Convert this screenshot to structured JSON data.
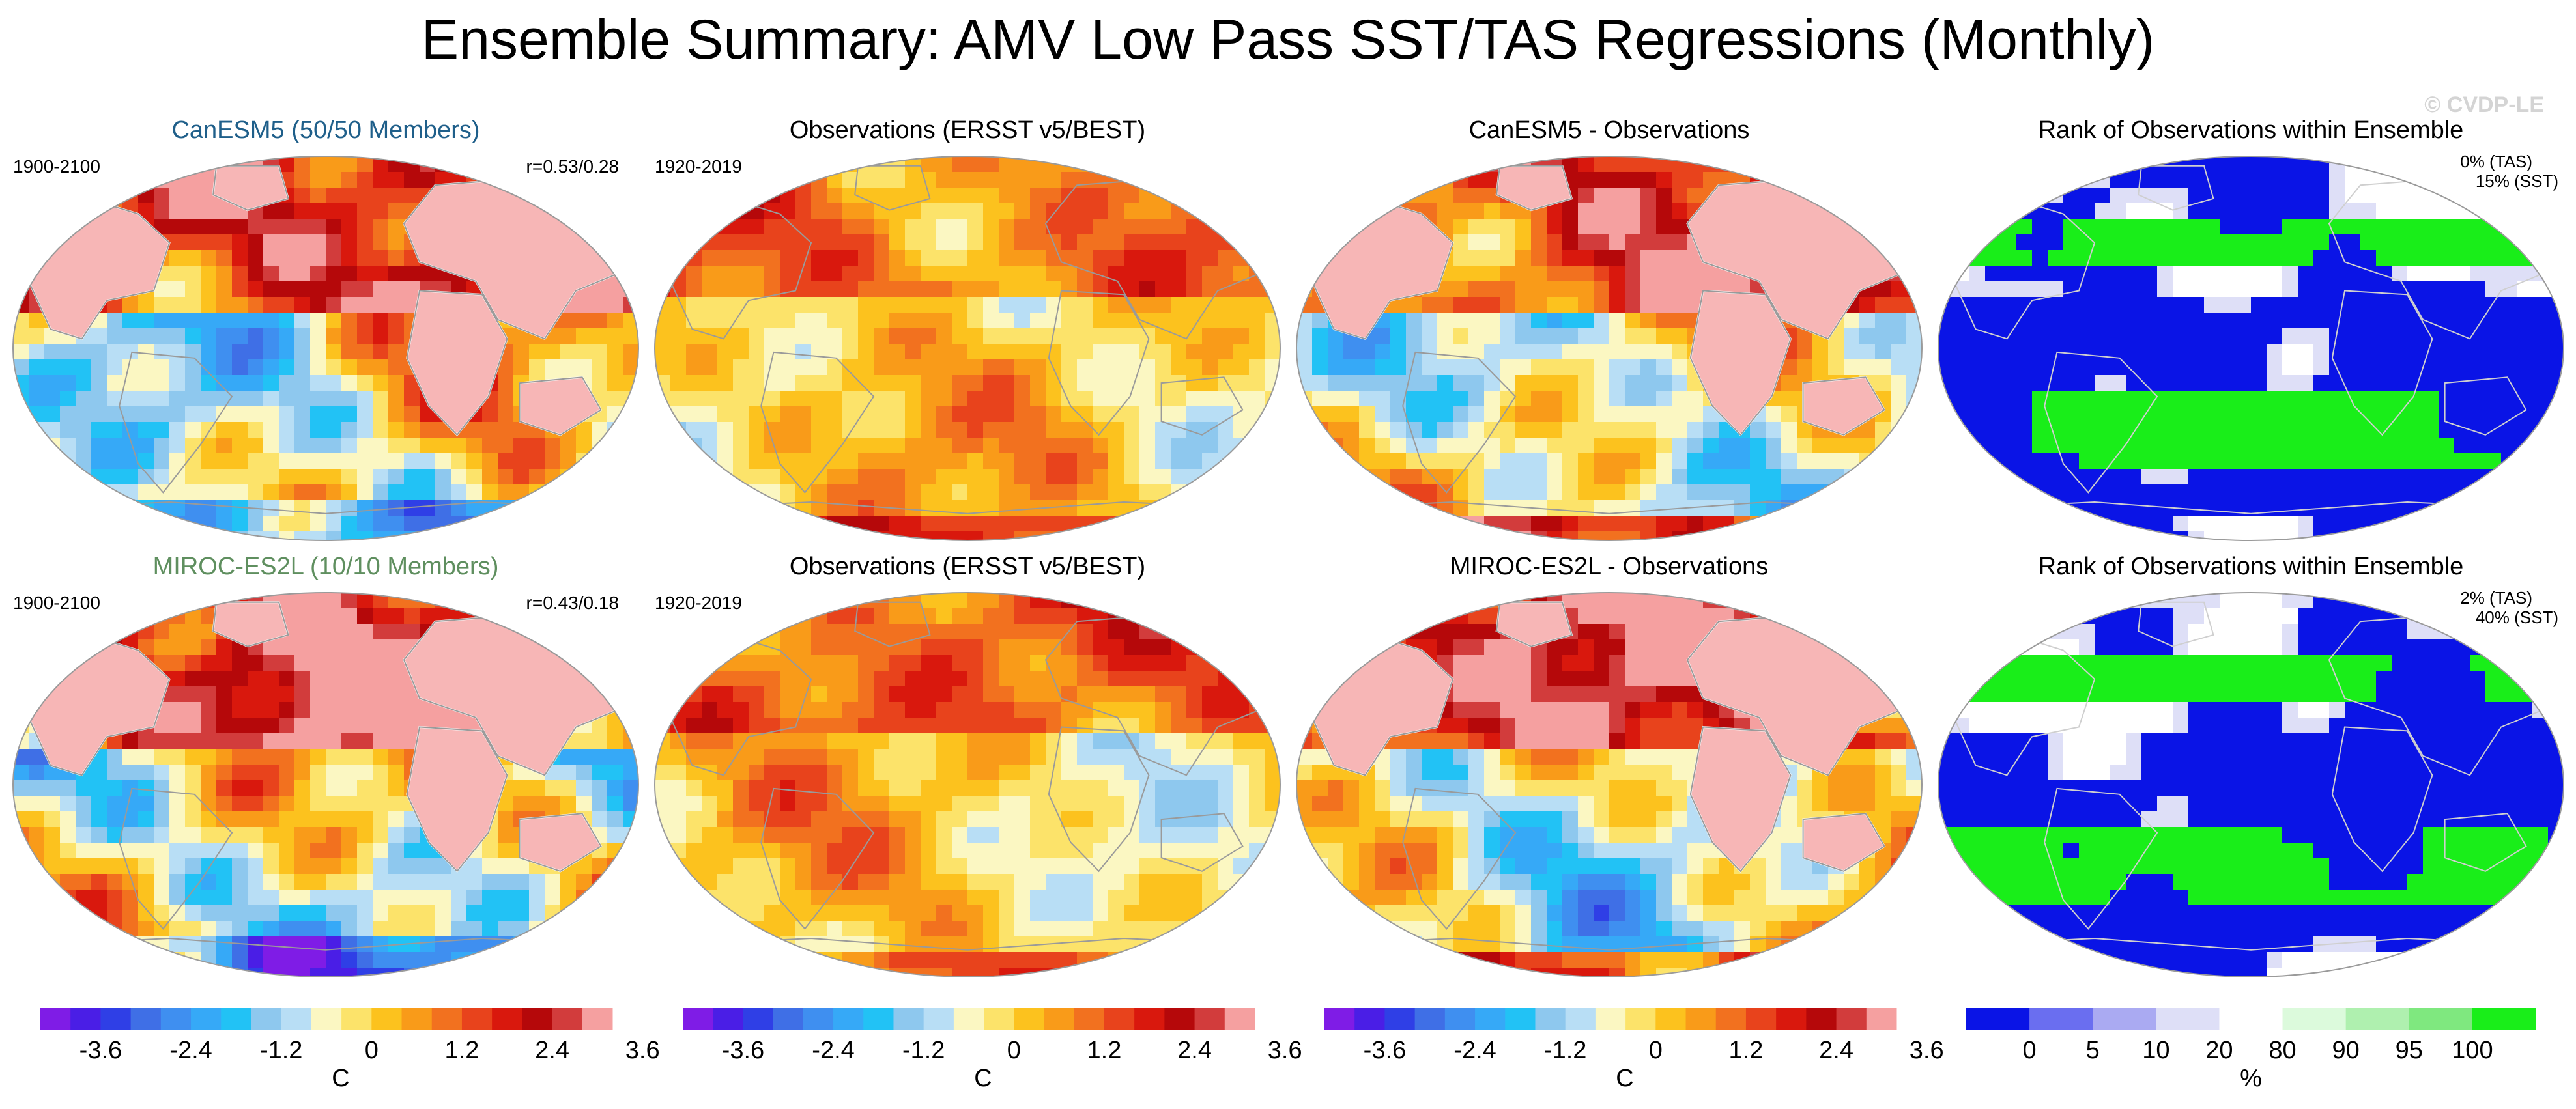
{
  "title": "Ensemble Summary: AMV Low Pass SST/TAS Regressions (Monthly)",
  "watermark": "© CVDP-LE",
  "colors": {
    "canesm_title": "#1f5f8a",
    "miroc_title": "#5f8f5f",
    "land": "#f7b6b6",
    "diverging_palette": [
      "#7f1ce6",
      "#4a1ee6",
      "#2f3fe6",
      "#3f6fe6",
      "#3f8ff0",
      "#36a9f7",
      "#22c2f5",
      "#8ec8ee",
      "#b8def5",
      "#fbf7c2",
      "#fce36a",
      "#fcc21e",
      "#f99b19",
      "#f2711f",
      "#e8431c",
      "#d9180d",
      "#b5080a",
      "#d23c3c",
      "#f5a0a0"
    ],
    "rank_palette": [
      "#0a14e6",
      "#6a6ef0",
      "#aaaaf2",
      "#dedff7",
      "#ffffff",
      "#dcfadc",
      "#aff0af",
      "#7fe87f",
      "#19ee19"
    ]
  },
  "panels": [
    {
      "row": 0,
      "col": 0,
      "title": "CanESM5 (50/50 Members)",
      "left_label": "1900-2100",
      "right_label": "r=0.53/0.28",
      "kind": "model"
    },
    {
      "row": 0,
      "col": 1,
      "title": "Observations (ERSST v5/BEST)",
      "left_label": "1920-2019",
      "right_label": "",
      "kind": "obs"
    },
    {
      "row": 0,
      "col": 2,
      "title": "CanESM5 - Observations",
      "left_label": "",
      "right_label": "",
      "kind": "diff"
    },
    {
      "row": 0,
      "col": 3,
      "title": "Rank of Observations within Ensemble",
      "left_label": "",
      "right_label": "",
      "rank_tas": "0% (TAS)",
      "rank_sst": "15% (SST)",
      "kind": "rank"
    },
    {
      "row": 1,
      "col": 0,
      "title": "MIROC-ES2L (10/10 Members)",
      "left_label": "1900-2100",
      "right_label": "r=0.43/0.18",
      "kind": "model"
    },
    {
      "row": 1,
      "col": 1,
      "title": "Observations (ERSST v5/BEST)",
      "left_label": "1920-2019",
      "right_label": "",
      "kind": "obs"
    },
    {
      "row": 1,
      "col": 2,
      "title": "MIROC-ES2L - Observations",
      "left_label": "",
      "right_label": "",
      "kind": "diff"
    },
    {
      "row": 1,
      "col": 3,
      "title": "Rank of Observations within Ensemble",
      "left_label": "",
      "right_label": "",
      "rank_tas": "2% (TAS)",
      "rank_sst": "40% (SST)",
      "kind": "rank"
    }
  ],
  "chart_data": {
    "type": "heatmap",
    "projection": "Robinson (global map)",
    "regression_colorbar": {
      "levels": [
        -4.2,
        -3.8,
        -3.4,
        -3.0,
        -2.6,
        -2.2,
        -1.8,
        -1.4,
        -1.0,
        -0.6,
        -0.2,
        0.2,
        0.6,
        1.0,
        1.4,
        1.8,
        2.2,
        2.6,
        3.0,
        3.4
      ],
      "tick_values": [
        -3.6,
        -2.4,
        -1.2,
        0,
        1.2,
        2.4,
        3.6
      ],
      "tick_labels": [
        "-3.6",
        "-2.4",
        "-1.2",
        "0",
        "1.2",
        "2.4",
        "3.6"
      ],
      "unit": "C"
    },
    "rank_colorbar": {
      "bins": [
        "0-5",
        "5-10",
        "10-20",
        "20-80",
        "80-90",
        "90-95",
        "95-100"
      ],
      "tick_labels": [
        "0",
        "5",
        "10",
        "20",
        "80",
        "90",
        "95",
        "100"
      ],
      "unit": "%"
    }
  }
}
